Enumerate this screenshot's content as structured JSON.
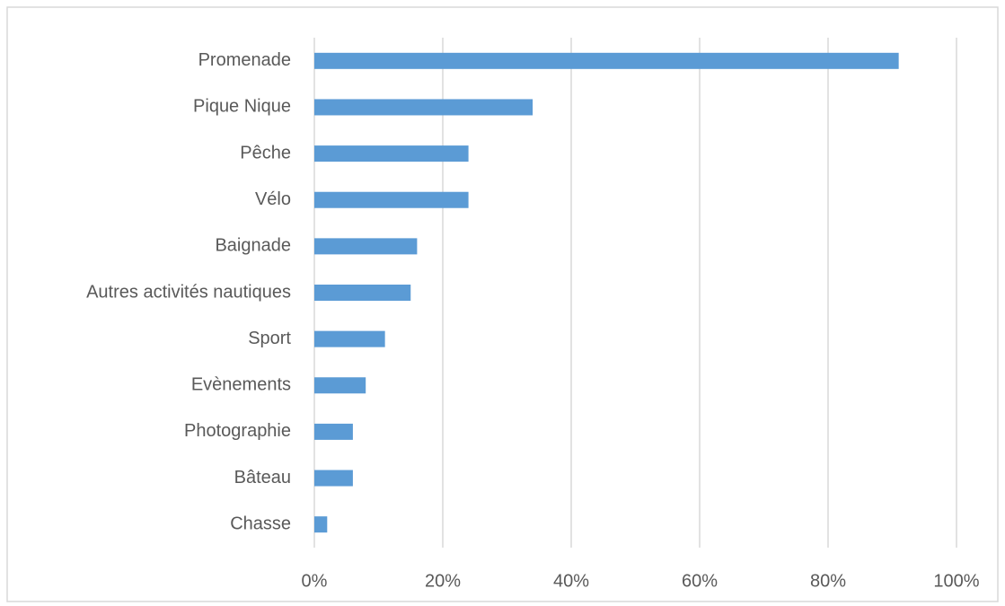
{
  "chart_data": {
    "type": "bar",
    "orientation": "horizontal",
    "categories": [
      "Promenade",
      "Pique Nique",
      "Pêche",
      "Vélo",
      "Baignade",
      "Autres activités nautiques",
      "Sport",
      "Evènements",
      "Photographie",
      "Bâteau",
      "Chasse"
    ],
    "values": [
      91,
      34,
      24,
      24,
      16,
      15,
      11,
      8,
      6,
      6,
      2
    ],
    "color": "#5b9bd5",
    "xlim": [
      0,
      100
    ],
    "xticks": [
      {
        "value": 0,
        "label": "0%"
      },
      {
        "value": 20,
        "label": "20%"
      },
      {
        "value": 40,
        "label": "40%"
      },
      {
        "value": 60,
        "label": "60%"
      },
      {
        "value": 80,
        "label": "80%"
      },
      {
        "value": 100,
        "label": "100%"
      }
    ],
    "grid": true
  }
}
